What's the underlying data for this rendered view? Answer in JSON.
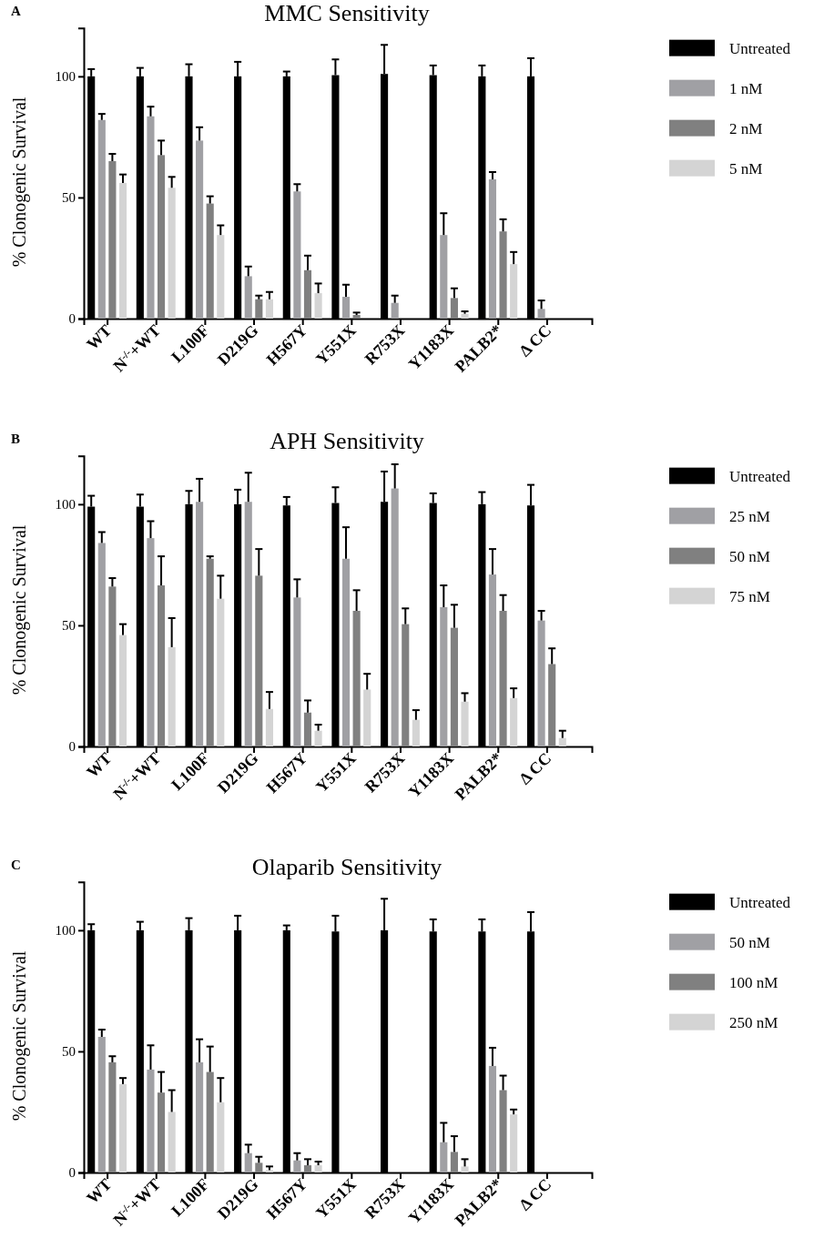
{
  "chart_data": [
    {
      "type": "bar",
      "title": "MMC Sensitivity",
      "ylabel": "% Clonogenic Survival",
      "annotations": [
        "A"
      ],
      "categories": [
        "WT",
        "N$^{-/-}$+WT",
        "L100F",
        "D219G",
        "H567Y",
        "Y551X",
        "R753X",
        "Y1183X",
        "PALB2*",
        "Δ CC"
      ],
      "ylim": [
        0,
        120
      ],
      "yticks": [
        0,
        50,
        100
      ],
      "legend": "top right",
      "series": [
        {
          "name": "Untreated",
          "color": "#000000",
          "values": [
            100,
            100,
            100,
            100,
            100,
            100.5,
            101,
            100.5,
            100,
            100
          ],
          "errors": [
            [
              100,
              103
            ],
            [
              100,
              103.5
            ],
            [
              100,
              105
            ],
            [
              100,
              106
            ],
            [
              100,
              102
            ],
            [
              100.5,
              107
            ],
            [
              101,
              113
            ],
            [
              100.5,
              104.5
            ],
            [
              100,
              104.5
            ],
            [
              100,
              107.5
            ]
          ]
        },
        {
          "name": "1 nM",
          "color": "#a0a0a4",
          "values": [
            82,
            83.5,
            73.5,
            17.5,
            52.5,
            9,
            6.5,
            34.5,
            57.5,
            4
          ],
          "errors": [
            [
              82,
              84.5
            ],
            [
              83.5,
              87.5
            ],
            [
              73.5,
              79
            ],
            [
              17.5,
              21.5
            ],
            [
              52.5,
              55.5
            ],
            [
              9,
              14
            ],
            [
              6.5,
              9.5
            ],
            [
              34.5,
              43.5
            ],
            [
              57.5,
              60.5
            ],
            [
              4,
              7.5
            ]
          ]
        },
        {
          "name": "2 nM",
          "color": "#808080",
          "values": [
            65,
            67.5,
            47.5,
            8,
            20,
            1.5,
            null,
            8.5,
            36,
            null
          ],
          "errors": [
            [
              65,
              68
            ],
            [
              67.5,
              73.5
            ],
            [
              47.5,
              50.5
            ],
            [
              8,
              9.5
            ],
            [
              20,
              26
            ],
            [
              1.5,
              2.5
            ],
            null,
            [
              8.5,
              12.5
            ],
            [
              36,
              41
            ],
            null
          ]
        },
        {
          "name": "5 nM",
          "color": "#d4d4d4",
          "values": [
            56,
            54,
            34.5,
            8,
            10.5,
            null,
            null,
            2,
            22.5,
            null
          ],
          "errors": [
            [
              56,
              59.5
            ],
            [
              54,
              58.5
            ],
            [
              34.5,
              38.5
            ],
            [
              8,
              11
            ],
            [
              10.5,
              14.5
            ],
            null,
            null,
            [
              2,
              3
            ],
            [
              22.5,
              27.5
            ],
            null
          ]
        }
      ]
    },
    {
      "type": "bar",
      "title": "APH Sensitivity",
      "ylabel": "% Clonogenic Survival",
      "annotations": [
        "B"
      ],
      "categories": [
        "WT",
        "N$^{-/-}$+WT",
        "L100F",
        "D219G",
        "H567Y",
        "Y551X",
        "R753X",
        "Y1183X",
        "PALB2*",
        "Δ CC"
      ],
      "ylim": [
        0,
        120
      ],
      "yticks": [
        0,
        50,
        100
      ],
      "legend": "top right",
      "series": [
        {
          "name": "Untreated",
          "color": "#000000",
          "values": [
            99,
            99,
            100,
            100,
            99.5,
            100.5,
            101,
            100.5,
            100,
            99.5
          ],
          "errors": [
            [
              99,
              103.5
            ],
            [
              99,
              104
            ],
            [
              100,
              105.5
            ],
            [
              100,
              106
            ],
            [
              99.5,
              103
            ],
            [
              100.5,
              107
            ],
            [
              101,
              113.5
            ],
            [
              100.5,
              104.5
            ],
            [
              100,
              105
            ],
            [
              99.5,
              108
            ]
          ]
        },
        {
          "name": "25 nM",
          "color": "#a0a0a4",
          "values": [
            84,
            86,
            101,
            101,
            61.5,
            77.5,
            106.5,
            57.5,
            71,
            52
          ],
          "errors": [
            [
              84,
              88.5
            ],
            [
              86,
              93
            ],
            [
              101,
              110.5
            ],
            [
              101,
              113
            ],
            [
              61.5,
              69
            ],
            [
              77.5,
              90.5
            ],
            [
              106.5,
              116.5
            ],
            [
              57.5,
              66.5
            ],
            [
              71,
              81.5
            ],
            [
              52,
              56
            ]
          ]
        },
        {
          "name": "50 nM",
          "color": "#808080",
          "values": [
            66,
            66.5,
            77.5,
            70.5,
            14,
            56,
            50.5,
            49,
            56,
            34
          ],
          "errors": [
            [
              66,
              69.5
            ],
            [
              66.5,
              78.5
            ],
            [
              77.5,
              78.5
            ],
            [
              70.5,
              81.5
            ],
            [
              14,
              19
            ],
            [
              56,
              64.5
            ],
            [
              50.5,
              57
            ],
            [
              49,
              58.5
            ],
            [
              56,
              62.5
            ],
            [
              34,
              40.5
            ]
          ]
        },
        {
          "name": "75 nM",
          "color": "#d4d4d4",
          "values": [
            46,
            41,
            61,
            15.5,
            6.5,
            23.5,
            11,
            18.5,
            20,
            3.5
          ],
          "errors": [
            [
              46,
              50.5
            ],
            [
              41,
              53
            ],
            [
              61,
              70.5
            ],
            [
              15.5,
              22.5
            ],
            [
              6.5,
              9
            ],
            [
              23.5,
              30
            ],
            [
              11,
              15
            ],
            [
              18.5,
              22
            ],
            [
              20,
              24
            ],
            [
              3.5,
              6.5
            ]
          ]
        }
      ]
    },
    {
      "type": "bar",
      "title": "Olaparib Sensitivity",
      "ylabel": "% Clonogenic Survival",
      "annotations": [
        "C"
      ],
      "categories": [
        "WT",
        "N$^{-/-}$+WT",
        "L100F",
        "D219G",
        "H567Y",
        "Y551X",
        "R753X",
        "Y1183X",
        "PALB2*",
        "Δ CC"
      ],
      "ylim": [
        0,
        120
      ],
      "yticks": [
        0,
        50,
        100
      ],
      "legend": "top right",
      "series": [
        {
          "name": "Untreated",
          "color": "#000000",
          "values": [
            100,
            100,
            100,
            100,
            100,
            99.5,
            100,
            99.5,
            99.5,
            99.5
          ],
          "errors": [
            [
              100,
              102.5
            ],
            [
              100,
              103.5
            ],
            [
              100,
              105
            ],
            [
              100,
              106
            ],
            [
              100,
              102
            ],
            [
              99.5,
              106
            ],
            [
              100,
              113
            ],
            [
              99.5,
              104.5
            ],
            [
              99.5,
              104.5
            ],
            [
              99.5,
              107.5
            ]
          ]
        },
        {
          "name": "50 nM",
          "color": "#a0a0a4",
          "values": [
            56,
            42.5,
            45.5,
            8,
            5,
            null,
            null,
            12.5,
            44,
            null
          ],
          "errors": [
            [
              56,
              59
            ],
            [
              42.5,
              52.5
            ],
            [
              45.5,
              55
            ],
            [
              8,
              11.5
            ],
            [
              5,
              8
            ],
            null,
            null,
            [
              12.5,
              20.5
            ],
            [
              44,
              51.5
            ],
            null
          ]
        },
        {
          "name": "100 nM",
          "color": "#808080",
          "values": [
            45.5,
            33,
            41.5,
            4,
            3,
            null,
            null,
            8.5,
            34,
            null
          ],
          "errors": [
            [
              45.5,
              48
            ],
            [
              33,
              41.5
            ],
            [
              41.5,
              52
            ],
            [
              4,
              6.5
            ],
            [
              3,
              5.5
            ],
            null,
            null,
            [
              8.5,
              15
            ],
            [
              34,
              40
            ],
            null
          ]
        },
        {
          "name": "250 nM",
          "color": "#d4d4d4",
          "values": [
            36.5,
            25,
            29,
            1,
            3,
            null,
            null,
            2.5,
            24,
            null
          ],
          "errors": [
            [
              36.5,
              39
            ],
            [
              25,
              34
            ],
            [
              29,
              39
            ],
            [
              1,
              2.5
            ],
            [
              3,
              4.5
            ],
            null,
            null,
            [
              2.5,
              5.5
            ],
            [
              24,
              26
            ],
            null
          ]
        }
      ]
    }
  ]
}
